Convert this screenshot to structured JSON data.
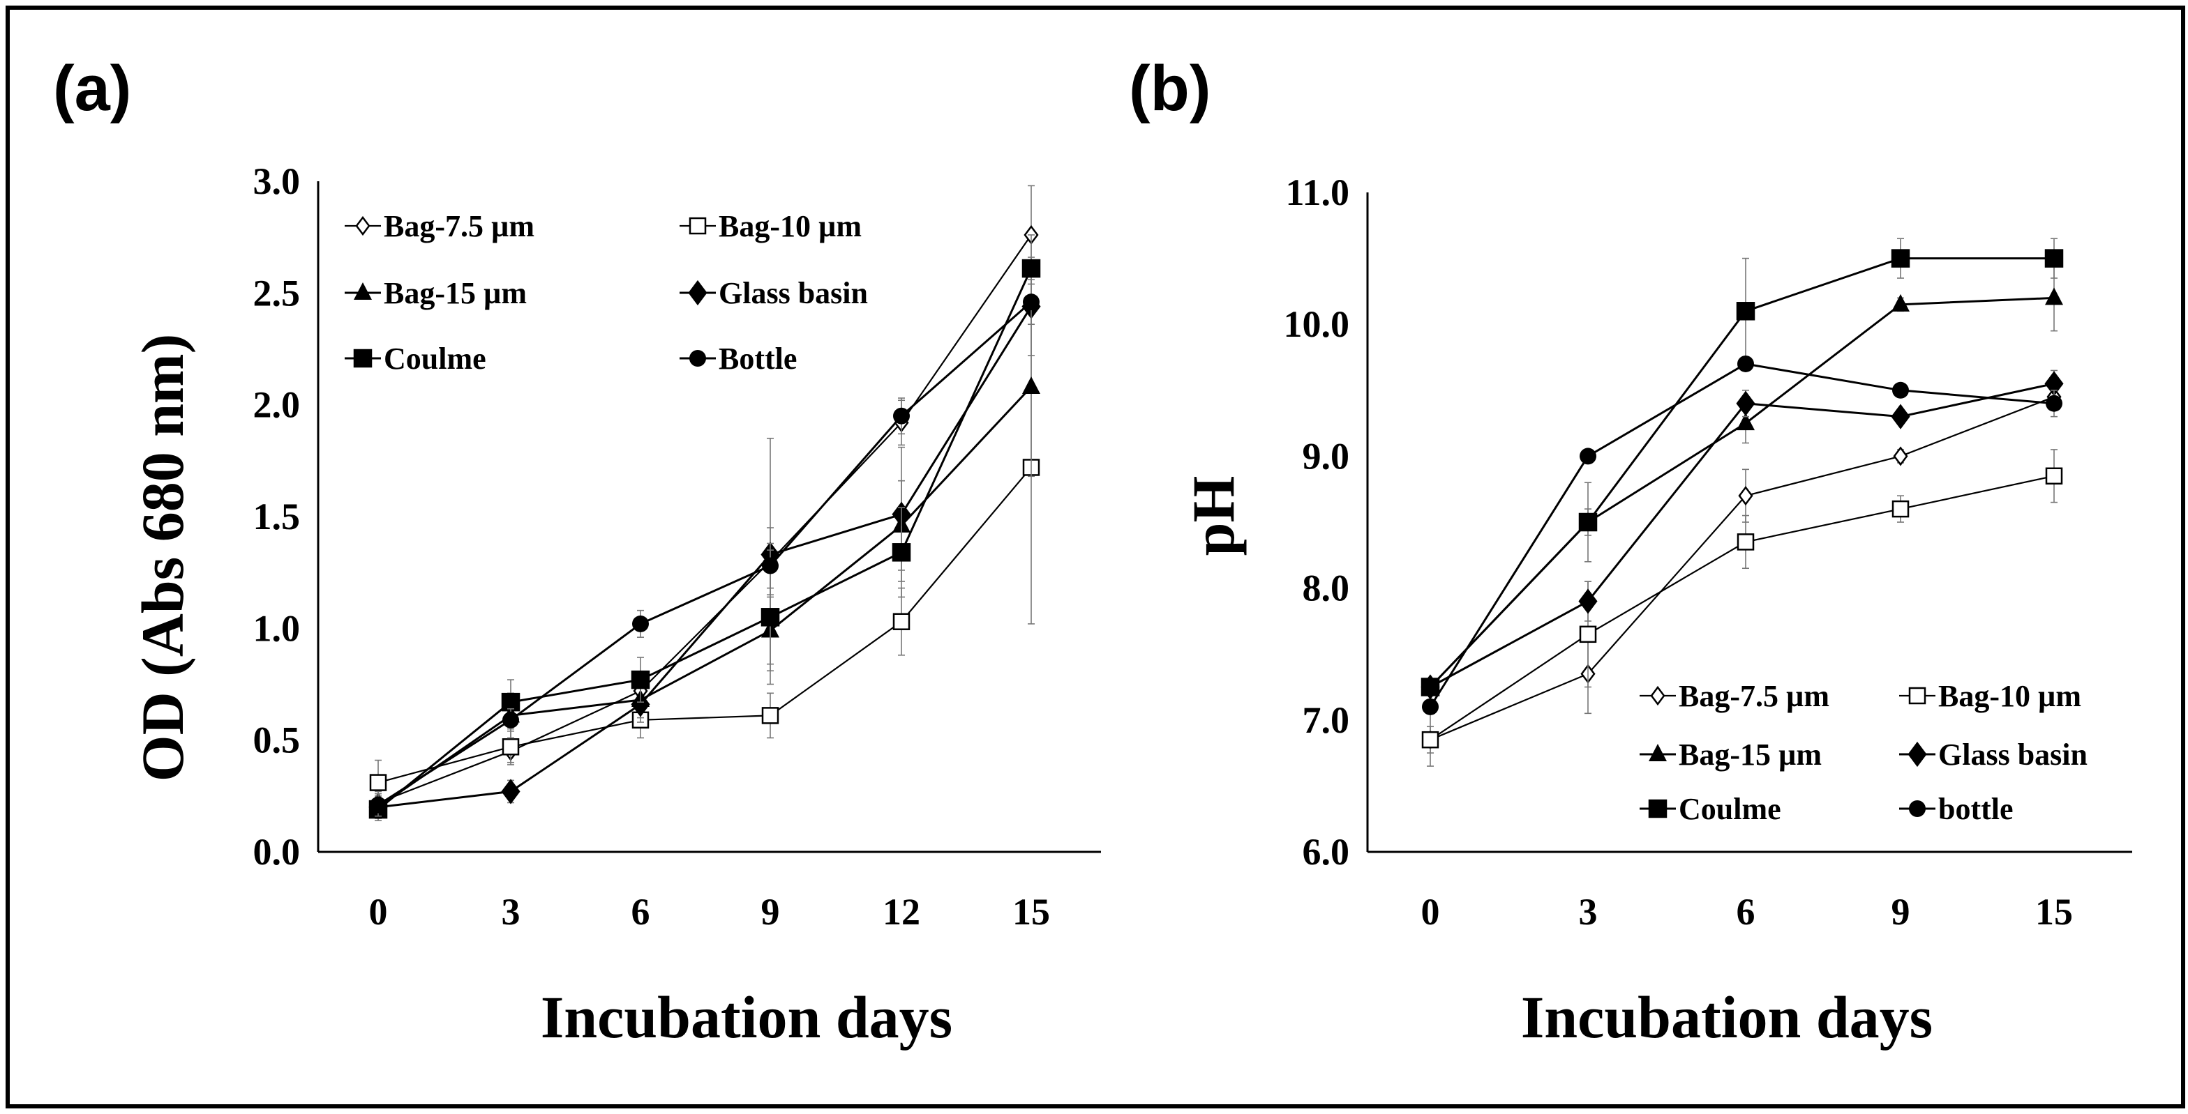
{
  "chart_data": [
    {
      "panel": "(a)",
      "type": "line",
      "xlabel": "Incubation days",
      "ylabel": "OD (Abs 680 nm)",
      "x": [
        0,
        3,
        6,
        9,
        12,
        15
      ],
      "xticks": [
        "0",
        "3",
        "6",
        "9",
        "12",
        "15"
      ],
      "ylim": [
        0,
        3
      ],
      "yticks": [
        "0.0",
        "0.5",
        "1.0",
        "1.5",
        "2.0",
        "2.5",
        "3.0"
      ],
      "legend": "top-left, 2 columns",
      "series": [
        {
          "name": "Bag-7.5 µm",
          "marker": "diamond-open",
          "values": [
            0.22,
            0.45,
            0.72,
            1.3,
            1.92,
            2.76
          ],
          "errors": [
            0.05,
            0.05,
            0.05,
            0.15,
            0.1,
            0.22
          ]
        },
        {
          "name": "Bag-10 µm",
          "marker": "square-open",
          "values": [
            0.31,
            0.47,
            0.59,
            0.61,
            1.03,
            1.72
          ],
          "errors": [
            0.1,
            0.08,
            0.08,
            0.1,
            0.15,
            0.7
          ]
        },
        {
          "name": "Bag-15 µm",
          "marker": "triangle",
          "values": [
            0.2,
            0.61,
            0.68,
            0.99,
            1.46,
            2.08
          ],
          "errors": [
            0.05,
            0.1,
            0.08,
            0.15,
            0.2,
            0.4
          ]
        },
        {
          "name": "Glass basin",
          "marker": "diamond",
          "values": [
            0.2,
            0.27,
            0.66,
            1.33,
            1.51,
            2.44
          ],
          "errors": [
            0.05,
            0.05,
            0.08,
            0.52,
            0.3,
            0.22
          ]
        },
        {
          "name": "Coulme",
          "marker": "square",
          "values": [
            0.19,
            0.67,
            0.77,
            1.05,
            1.34,
            2.61
          ],
          "errors": [
            0.05,
            0.1,
            0.1,
            0.3,
            0.2,
            0.15
          ]
        },
        {
          "name": "Bottle",
          "marker": "circle",
          "values": [
            0.21,
            0.59,
            1.02,
            1.28,
            1.95,
            2.46
          ],
          "errors": [
            0.05,
            0.05,
            0.06,
            0.1,
            0.08,
            0.1
          ]
        }
      ]
    },
    {
      "panel": "(b)",
      "type": "line",
      "xlabel": "Incubation days",
      "ylabel": "pH",
      "x": [
        0,
        3,
        6,
        9,
        15
      ],
      "xticks": [
        "0",
        "3",
        "6",
        "9",
        "15"
      ],
      "ylim": [
        6,
        11
      ],
      "yticks": [
        "6.0",
        "7.0",
        "8.0",
        "9.0",
        "10.0",
        "11.0"
      ],
      "legend": "bottom-right, 2 columns",
      "series": [
        {
          "name": "Bag-7.5 µm",
          "marker": "diamond-open",
          "values": [
            6.85,
            7.35,
            8.7,
            9.0,
            9.45
          ],
          "errors": [
            0.1,
            0.3,
            0.2,
            0.05,
            0.1
          ]
        },
        {
          "name": "Bag-10 µm",
          "marker": "square-open",
          "values": [
            6.85,
            7.65,
            8.35,
            8.6,
            8.85
          ],
          "errors": [
            0.2,
            0.4,
            0.2,
            0.1,
            0.2
          ]
        },
        {
          "name": "Bag-15 µm",
          "marker": "triangle",
          "values": [
            7.25,
            8.5,
            9.25,
            10.15,
            10.2
          ],
          "errors": [
            0.05,
            0.3,
            0.15,
            0.05,
            0.25
          ]
        },
        {
          "name": "Glass basin",
          "marker": "diamond",
          "values": [
            7.25,
            7.9,
            9.4,
            9.3,
            9.55
          ],
          "errors": [
            0.05,
            0.15,
            0.1,
            0.05,
            0.1
          ]
        },
        {
          "name": "Coulme",
          "marker": "square",
          "values": [
            7.25,
            8.5,
            10.1,
            10.5,
            10.5
          ],
          "errors": [
            0.05,
            0.1,
            0.4,
            0.15,
            0.15
          ]
        },
        {
          "name": "bottle",
          "marker": "circle",
          "values": [
            7.1,
            9.0,
            9.7,
            9.5,
            9.4
          ],
          "errors": [
            0.05,
            0.05,
            0.05,
            0.05,
            0.1
          ]
        }
      ]
    }
  ]
}
